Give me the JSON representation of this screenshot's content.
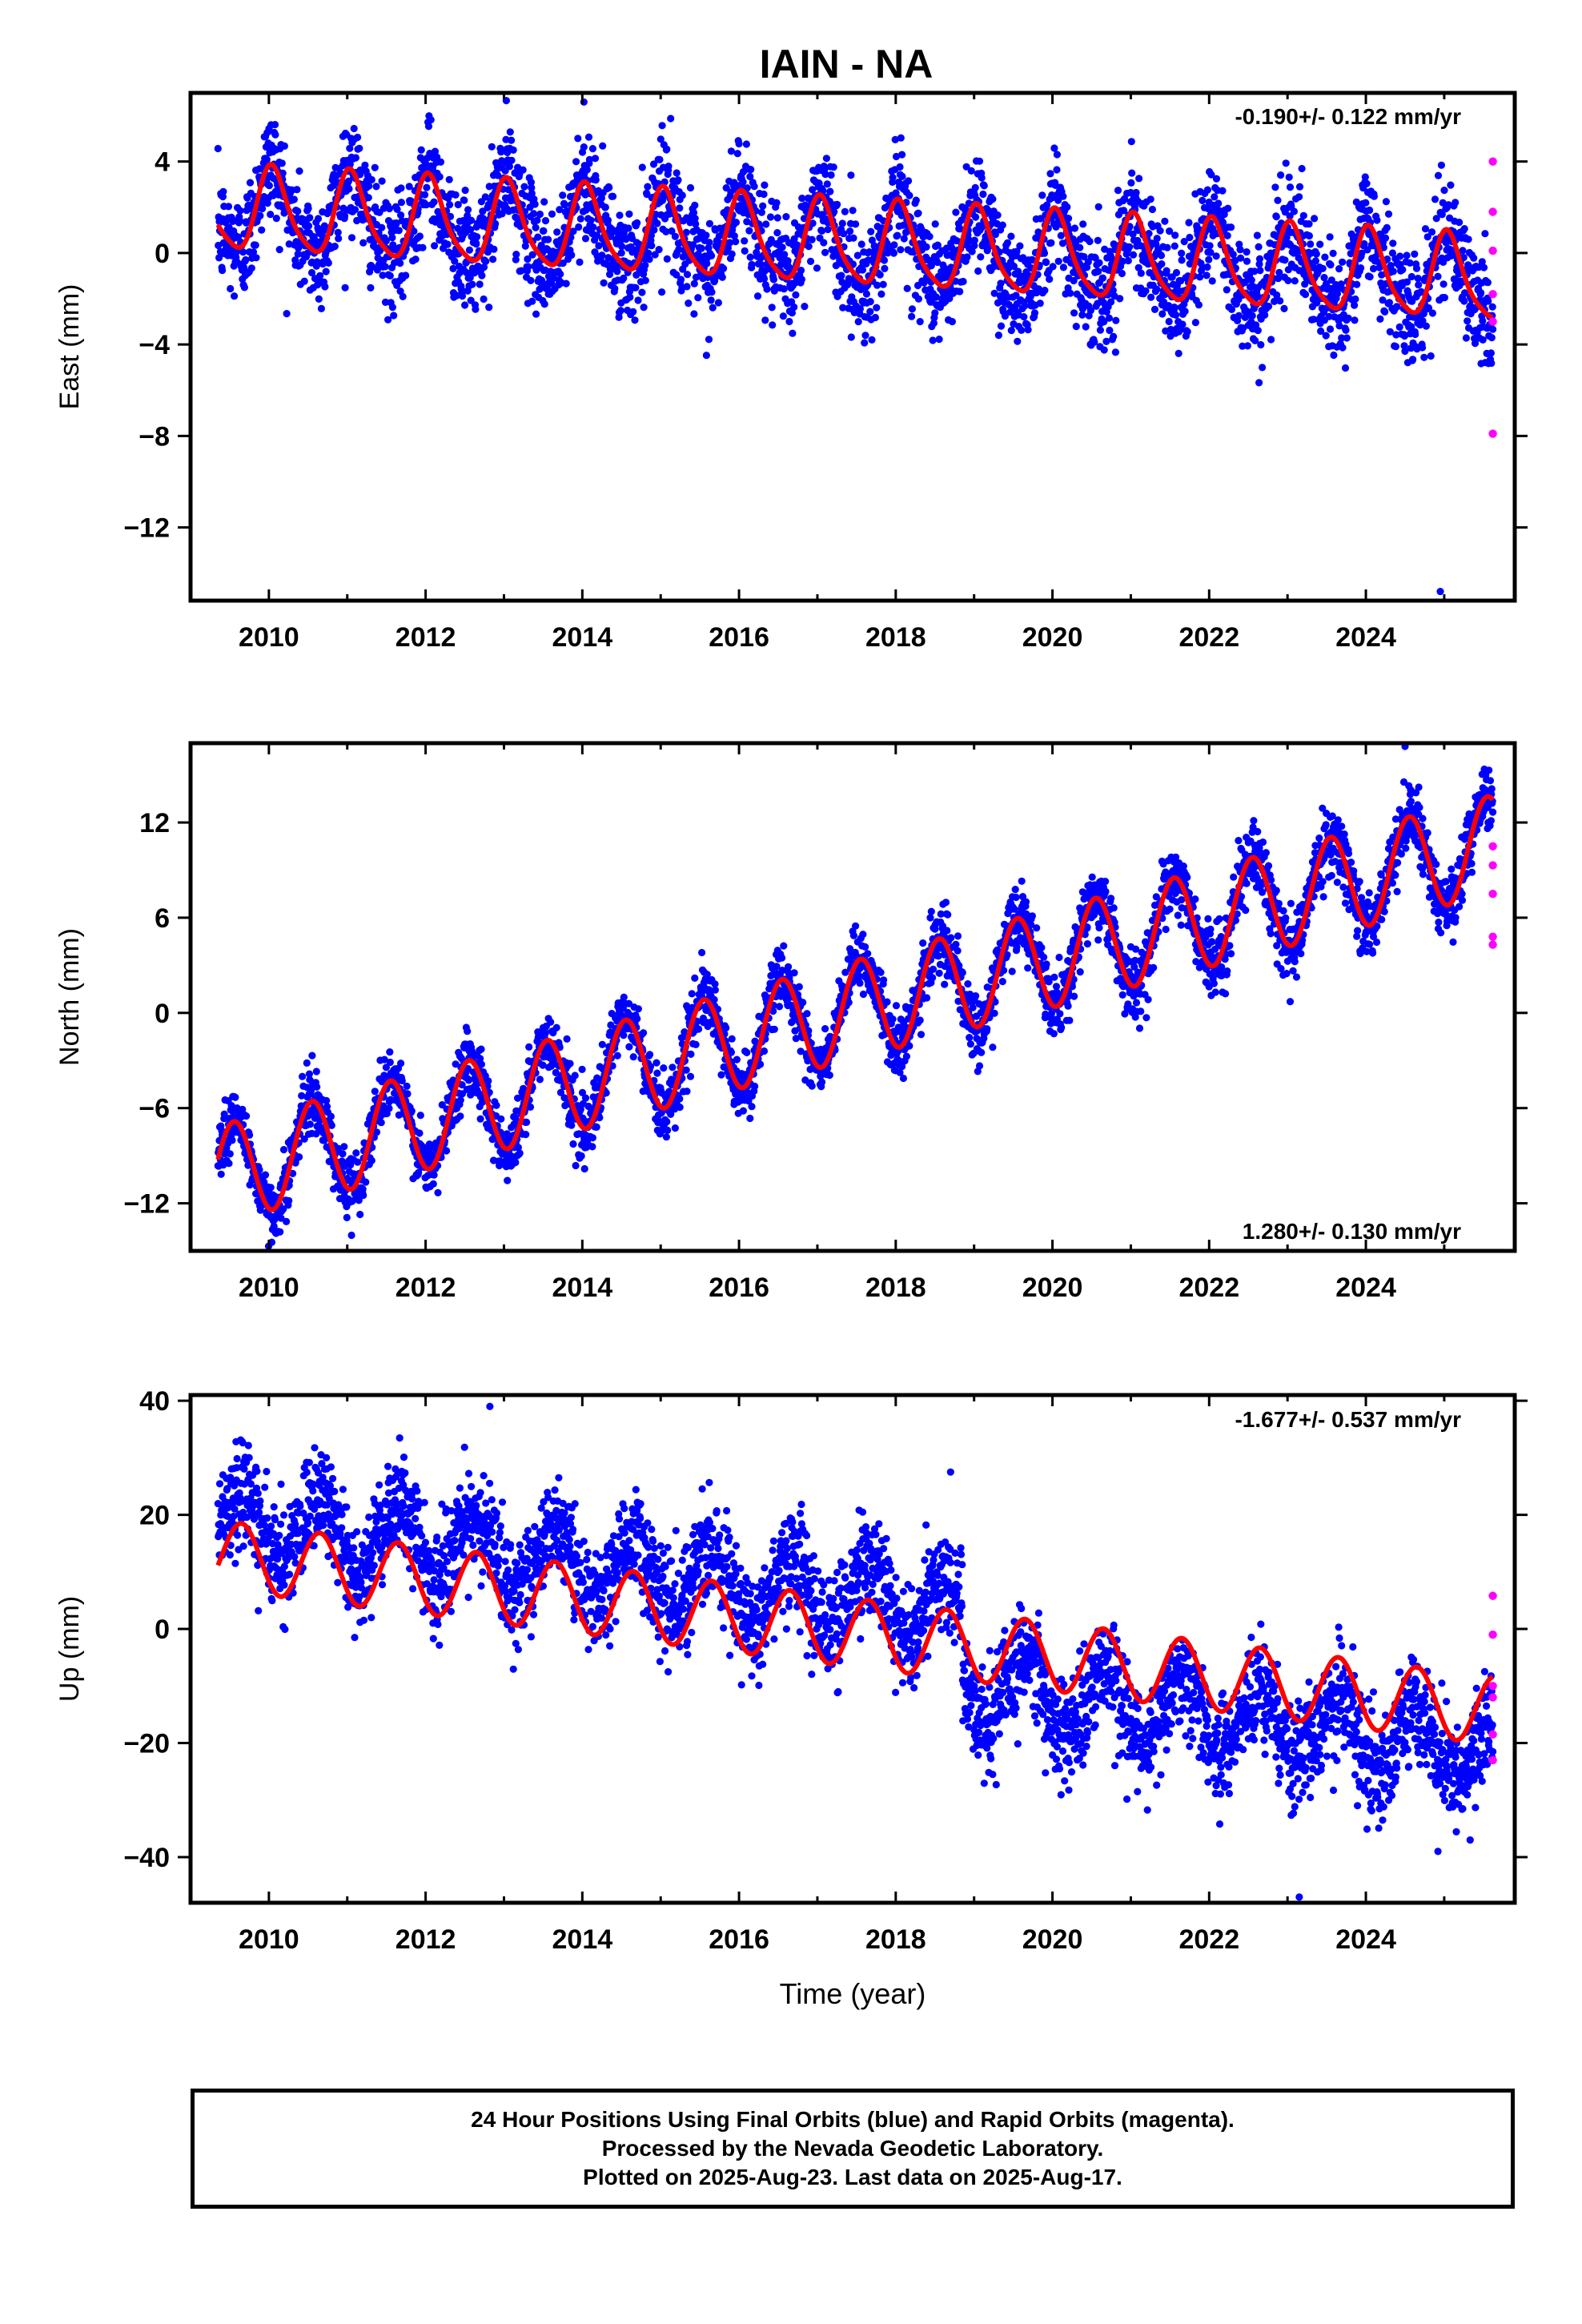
{
  "title": "IAIN - NA",
  "xlabel": "Time (year)",
  "caption": {
    "line1": "24 Hour Positions Using Final Orbits (blue) and Rapid Orbits (magenta).",
    "line2": "Processed by the Nevada Geodetic Laboratory.",
    "line3": "Plotted on 2025-Aug-23. Last data on 2025-Aug-17."
  },
  "colors": {
    "final": "#0000ff",
    "rapid": "#ff00ff",
    "model": "#ff0000",
    "frame": "#000000"
  },
  "chart_data": [
    {
      "type": "scatter",
      "name": "east",
      "ylabel": "East (mm)",
      "rate_label": "-0.190+/- 0.122 mm/yr",
      "rate_position": "top-right",
      "xlim": [
        2009.0,
        2025.9
      ],
      "ylim": [
        -15.2,
        7.0
      ],
      "x_ticks": [
        2010,
        2012,
        2014,
        2016,
        2018,
        2020,
        2022,
        2024
      ],
      "x_tick_labels": [
        "2010",
        "2012",
        "2014",
        "2016",
        "2018",
        "2020",
        "2022",
        "2024"
      ],
      "y_ticks": [
        4,
        0,
        -4,
        -8,
        -12
      ],
      "y_tick_labels": [
        "4",
        "0",
        "−4",
        "−8",
        "−12"
      ],
      "model": {
        "start": 2009.35,
        "end": 2025.62,
        "offset": 1.9,
        "slope": -0.19,
        "amplitude": 1.8,
        "peak_phase": 0.05,
        "semiannual": 0.35,
        "noise_sd": 1.2
      },
      "series": [
        {
          "name": "Final Orbits",
          "color": "blue"
        },
        {
          "name": "Rapid Orbits",
          "color": "magenta",
          "x": [
            2025.62,
            2025.62,
            2025.62,
            2025.62,
            2025.62,
            2025.62
          ],
          "values": [
            4.0,
            1.8,
            0.1,
            -1.8,
            -3.0,
            -7.9
          ]
        }
      ],
      "outliers": [
        {
          "x": 2024.95,
          "value": -14.8
        },
        {
          "x": 2014.02,
          "value": 6.6
        }
      ]
    },
    {
      "type": "scatter",
      "name": "north",
      "ylabel": "North (mm)",
      "rate_label": "1.280+/- 0.130 mm/yr",
      "rate_position": "bottom-right",
      "xlim": [
        2009.0,
        2025.9
      ],
      "ylim": [
        -15.0,
        17.0
      ],
      "x_ticks": [
        2010,
        2012,
        2014,
        2016,
        2018,
        2020,
        2022,
        2024
      ],
      "x_tick_labels": [
        "2010",
        "2012",
        "2014",
        "2016",
        "2018",
        "2020",
        "2022",
        "2024"
      ],
      "y_ticks": [
        12,
        6,
        0,
        -6,
        -12
      ],
      "y_tick_labels": [
        "12",
        "6",
        "0",
        "−6",
        "−12"
      ],
      "model": {
        "start": 2009.35,
        "end": 2025.62,
        "offset": -10.2,
        "slope": 1.28,
        "amplitude": 3.1,
        "peak_phase": 0.55,
        "semiannual": 0.0,
        "noise_sd": 1.0
      },
      "series": [
        {
          "name": "Final Orbits",
          "color": "blue"
        },
        {
          "name": "Rapid Orbits",
          "color": "magenta",
          "x": [
            2025.62,
            2025.62,
            2025.62,
            2025.62,
            2025.62
          ],
          "values": [
            10.5,
            9.3,
            7.5,
            4.8,
            4.3
          ]
        }
      ],
      "outliers": [
        {
          "x": 2024.5,
          "value": 16.8
        }
      ]
    },
    {
      "type": "scatter",
      "name": "up",
      "ylabel": "Up (mm)",
      "rate_label": "-1.677+/- 0.537 mm/yr",
      "rate_position": "top-right",
      "xlim": [
        2009.0,
        2025.9
      ],
      "ylim": [
        -48.0,
        41.0
      ],
      "x_ticks": [
        2010,
        2012,
        2014,
        2016,
        2018,
        2020,
        2022,
        2024
      ],
      "x_tick_labels": [
        "2010",
        "2012",
        "2014",
        "2016",
        "2018",
        "2020",
        "2022",
        "2024"
      ],
      "y_ticks": [
        40,
        20,
        0,
        -20,
        -40
      ],
      "y_tick_labels": [
        "40",
        "20",
        "0",
        "−20",
        "−40"
      ],
      "model": {
        "start": 2009.35,
        "end": 2025.62,
        "offset": 13.0,
        "slope": -1.677,
        "amplitude": 6.0,
        "peak_phase": 0.65,
        "semiannual": 0.0,
        "noise_sd": 4.5
      },
      "data_offset": {
        "before": 6.0,
        "after": -7.0,
        "break_at": 2018.85
      },
      "series": [
        {
          "name": "Final Orbits",
          "color": "blue"
        },
        {
          "name": "Rapid Orbits",
          "color": "magenta",
          "x": [
            2025.62,
            2025.62,
            2025.62,
            2025.62,
            2025.62,
            2025.62
          ],
          "values": [
            5.8,
            -1.0,
            -10.0,
            -12.0,
            -18.5,
            -23.0
          ]
        }
      ],
      "outliers": [
        {
          "x": 2023.15,
          "value": -47.0
        },
        {
          "x": 2024.92,
          "value": -39.0
        },
        {
          "x": 2012.82,
          "value": 39.0
        },
        {
          "x": 2018.7,
          "value": 27.5
        }
      ]
    }
  ]
}
